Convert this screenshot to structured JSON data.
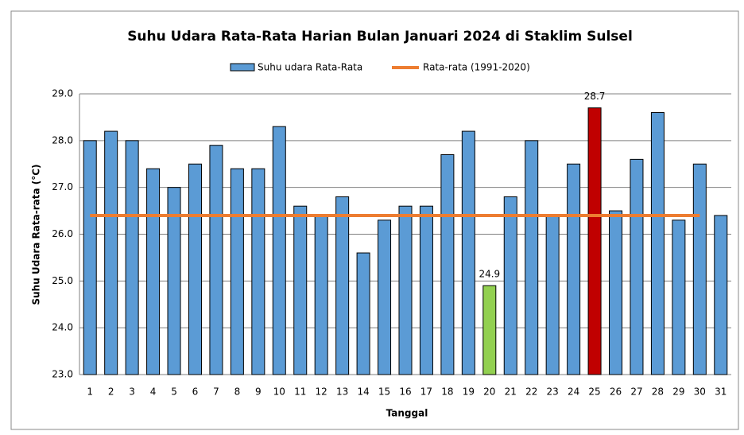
{
  "chart_data": {
    "type": "bar",
    "title": "Suhu Udara Rata-Rata Harian Bulan Januari 2024 di Staklim Sulsel",
    "x_label": "Tanggal",
    "y_label": "Suhu Udara Rata-rata (°C)",
    "categories": [
      "1",
      "2",
      "3",
      "4",
      "5",
      "6",
      "7",
      "8",
      "9",
      "10",
      "11",
      "12",
      "13",
      "14",
      "15",
      "16",
      "17",
      "18",
      "19",
      "20",
      "21",
      "22",
      "23",
      "24",
      "25",
      "26",
      "27",
      "28",
      "29",
      "30",
      "31"
    ],
    "series": [
      {
        "name": "Suhu udara Rata-Rata",
        "color": "#5b9bd5",
        "values": [
          28.0,
          28.2,
          28.0,
          27.4,
          27.0,
          27.5,
          27.9,
          27.4,
          27.4,
          28.3,
          26.6,
          26.4,
          26.8,
          25.6,
          26.3,
          26.6,
          26.6,
          27.7,
          28.2,
          24.9,
          26.8,
          28.0,
          26.4,
          27.5,
          28.7,
          26.5,
          27.6,
          28.6,
          26.3,
          27.5,
          26.4
        ],
        "colors": [
          "#5b9bd5",
          "#5b9bd5",
          "#5b9bd5",
          "#5b9bd5",
          "#5b9bd5",
          "#5b9bd5",
          "#5b9bd5",
          "#5b9bd5",
          "#5b9bd5",
          "#5b9bd5",
          "#5b9bd5",
          "#5b9bd5",
          "#5b9bd5",
          "#5b9bd5",
          "#5b9bd5",
          "#5b9bd5",
          "#5b9bd5",
          "#5b9bd5",
          "#5b9bd5",
          "#92d050",
          "#5b9bd5",
          "#5b9bd5",
          "#5b9bd5",
          "#5b9bd5",
          "#c00000",
          "#5b9bd5",
          "#5b9bd5",
          "#5b9bd5",
          "#5b9bd5",
          "#5b9bd5",
          "#5b9bd5"
        ],
        "labeled_indices": [
          19,
          24
        ]
      }
    ],
    "reference_line": {
      "name": "Rata-rata (1991-2020)",
      "value": 26.4,
      "color": "#ed7d31"
    },
    "ylim": [
      23,
      29
    ],
    "yticks": [
      {
        "value": 23,
        "label": "23.0"
      },
      {
        "value": 24,
        "label": "24.0"
      },
      {
        "value": 25,
        "label": "25.0"
      },
      {
        "value": 26,
        "label": "26.0"
      },
      {
        "value": 27,
        "label": "27.0"
      },
      {
        "value": 28,
        "label": "28.0"
      },
      {
        "value": 29,
        "label": "29.0"
      }
    ],
    "grid": true,
    "legend": "top"
  }
}
